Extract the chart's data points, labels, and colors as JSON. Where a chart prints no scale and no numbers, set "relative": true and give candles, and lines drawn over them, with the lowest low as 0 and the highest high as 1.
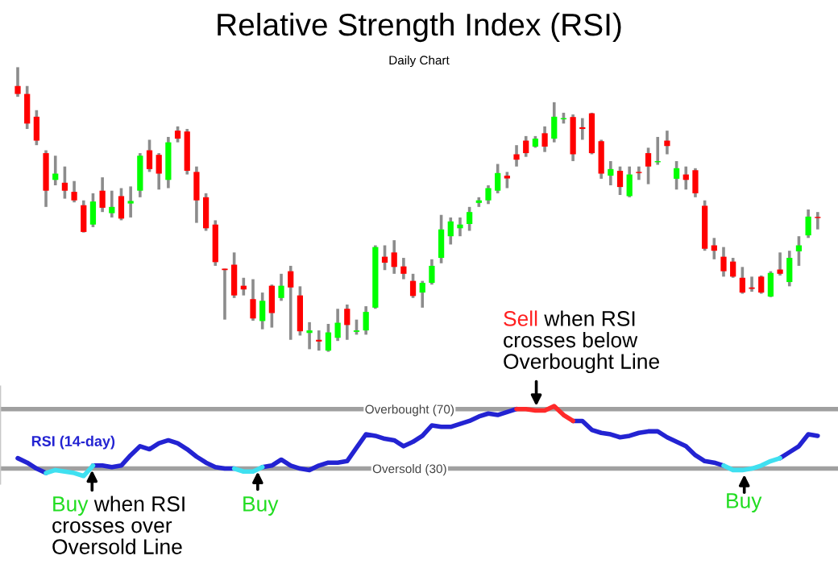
{
  "chart_data": [
    {
      "type": "candlestick",
      "title": "Relative Strength Index (RSI)",
      "subtitle": "Daily Chart",
      "relative": true,
      "tick_labels": false,
      "categories": [
        null,
        null,
        null,
        null,
        null,
        null,
        null,
        null,
        null,
        null,
        null,
        null,
        null,
        null,
        null,
        null,
        null,
        null,
        null,
        null,
        null,
        null,
        null,
        null,
        null,
        null,
        null,
        null,
        null,
        null,
        null,
        null,
        null,
        null,
        null,
        null,
        null,
        null,
        null,
        null,
        null,
        null,
        null,
        null,
        null,
        null,
        null,
        null,
        null,
        null,
        null,
        null,
        null,
        null,
        null,
        null,
        null,
        null,
        null,
        null,
        null,
        null,
        null,
        null,
        null,
        null,
        null,
        null,
        null,
        null,
        null,
        null,
        null,
        null,
        null,
        null,
        null,
        null,
        null,
        null,
        null,
        null,
        null,
        null,
        null,
        null
      ],
      "ohlc": [
        [
          0.934,
          1,
          0.896,
          0.906
        ],
        [
          0.906,
          0.934,
          0.783,
          0.802
        ],
        [
          0.826,
          0.849,
          0.726,
          0.742
        ],
        [
          0.698,
          0.708,
          0.509,
          0.566
        ],
        [
          0.604,
          0.689,
          0.585,
          0.626
        ],
        [
          0.594,
          0.651,
          0.538,
          0.566
        ],
        [
          0.562,
          0.6,
          0.525,
          0.532
        ],
        [
          0.515,
          0.532,
          0.419,
          0.421
        ],
        [
          0.447,
          0.557,
          0.438,
          0.528
        ],
        [
          0.566,
          0.613,
          0.491,
          0.506
        ],
        [
          0.487,
          0.566,
          0.472,
          0.509
        ],
        [
          0.547,
          0.575,
          0.462,
          0.468
        ],
        [
          0.521,
          0.581,
          0.472,
          0.53
        ],
        [
          0.566,
          0.698,
          0.543,
          0.689
        ],
        [
          0.708,
          0.745,
          0.632,
          0.642
        ],
        [
          0.692,
          0.698,
          0.57,
          0.626
        ],
        [
          0.604,
          0.755,
          0.575,
          0.736
        ],
        [
          0.777,
          0.792,
          0.736,
          0.749
        ],
        [
          0.774,
          0.783,
          0.623,
          0.636
        ],
        [
          0.632,
          0.651,
          0.453,
          0.532
        ],
        [
          0.543,
          0.557,
          0.425,
          0.434
        ],
        [
          0.447,
          0.462,
          0.302,
          0.315
        ],
        [
          0.292,
          0.292,
          0.113,
          0.287
        ],
        [
          0.306,
          0.349,
          0.189,
          0.198
        ],
        [
          0.232,
          0.26,
          0.198,
          0.219
        ],
        [
          0.185,
          0.255,
          0.109,
          0.117
        ],
        [
          0.108,
          0.208,
          0.079,
          0.179
        ],
        [
          0.232,
          0.236,
          0.085,
          0.136
        ],
        [
          0.189,
          0.274,
          0.179,
          0.232
        ],
        [
          0.283,
          0.302,
          0.042,
          0.226
        ],
        [
          0.198,
          0.23,
          0.057,
          0.072
        ],
        [
          0.066,
          0.104,
          0.009,
          0.075
        ],
        [
          0.042,
          0.075,
          0.004,
          0.036
        ],
        [
          0.004,
          0.098,
          0,
          0.068
        ],
        [
          0.049,
          0.151,
          0.038,
          0.102
        ],
        [
          0.151,
          0.166,
          0.042,
          0.094
        ],
        [
          0.07,
          0.113,
          0.06,
          0.075
        ],
        [
          0.075,
          0.16,
          0.06,
          0.14
        ],
        [
          0.155,
          0.374,
          0.151,
          0.368
        ],
        [
          0.334,
          0.374,
          0.287,
          0.313
        ],
        [
          0.349,
          0.392,
          0.274,
          0.298
        ],
        [
          0.3,
          0.33,
          0.255,
          0.274
        ],
        [
          0.249,
          0.274,
          0.189,
          0.196
        ],
        [
          0.208,
          0.249,
          0.155,
          0.242
        ],
        [
          0.242,
          0.325,
          0.236,
          0.302
        ],
        [
          0.33,
          0.481,
          0.311,
          0.43
        ],
        [
          0.406,
          0.472,
          0.377,
          0.458
        ],
        [
          0.434,
          0.472,
          0.406,
          0.447
        ],
        [
          0.449,
          0.509,
          0.425,
          0.491
        ],
        [
          0.523,
          0.543,
          0.509,
          0.532
        ],
        [
          0.532,
          0.585,
          0.519,
          0.575
        ],
        [
          0.566,
          0.66,
          0.557,
          0.628
        ],
        [
          0.619,
          0.632,
          0.575,
          0.609
        ],
        [
          0.694,
          0.726,
          0.651,
          0.675
        ],
        [
          0.742,
          0.758,
          0.685,
          0.698
        ],
        [
          0.721,
          0.758,
          0.717,
          0.749
        ],
        [
          0.768,
          0.792,
          0.702,
          0.721
        ],
        [
          0.749,
          0.877,
          0.736,
          0.826
        ],
        [
          0.817,
          0.84,
          0.802,
          0.821
        ],
        [
          0.825,
          0.834,
          0.67,
          0.694
        ],
        [
          0.789,
          0.821,
          0.745,
          0.783
        ],
        [
          0.838,
          0.84,
          0.694,
          0.698
        ],
        [
          0.74,
          0.745,
          0.608,
          0.626
        ],
        [
          0.619,
          0.67,
          0.585,
          0.642
        ],
        [
          0.636,
          0.651,
          0.551,
          0.579
        ],
        [
          0.547,
          0.651,
          0.543,
          0.623
        ],
        [
          0.632,
          0.651,
          0.604,
          0.628
        ],
        [
          0.698,
          0.717,
          0.589,
          0.651
        ],
        [
          0.666,
          0.755,
          0.657,
          0.67
        ],
        [
          0.742,
          0.777,
          0.694,
          0.723
        ],
        [
          0.608,
          0.67,
          0.57,
          0.645
        ],
        [
          0.623,
          0.651,
          0.57,
          0.604
        ],
        [
          0.638,
          0.645,
          0.543,
          0.557
        ],
        [
          0.513,
          0.532,
          0.355,
          0.362
        ],
        [
          0.374,
          0.4,
          0.325,
          0.355
        ],
        [
          0.334,
          0.368,
          0.264,
          0.283
        ],
        [
          0.317,
          0.33,
          0.26,
          0.264
        ],
        [
          0.26,
          0.298,
          0.204,
          0.208
        ],
        [
          0.226,
          0.264,
          0.211,
          0.221
        ],
        [
          0.264,
          0.268,
          0.204,
          0.208
        ],
        [
          0.194,
          0.283,
          0.192,
          0.277
        ],
        [
          0.289,
          0.349,
          0.268,
          0.274
        ],
        [
          0.245,
          0.355,
          0.23,
          0.33
        ],
        [
          0.353,
          0.406,
          0.302,
          0.374
        ],
        [
          0.409,
          0.5,
          0.4,
          0.475
        ],
        [
          0.474,
          0.491,
          0.43,
          0.47
        ]
      ],
      "colors": [
        "#ff0000",
        "#ff0000",
        "#ff0000",
        "#ff0000",
        "#00ff00",
        "#ff0000",
        "#ff0000",
        "#ff0000",
        "#00ff00",
        "#ff0000",
        "#00ff00",
        "#ff0000",
        "#00ff00",
        "#00ff00",
        "#ff0000",
        "#ff0000",
        "#00ff00",
        "#ff0000",
        "#ff0000",
        "#ff0000",
        "#ff0000",
        "#ff0000",
        "#ff0000",
        "#ff0000",
        "#ff0000",
        "#ff0000",
        "#00ff00",
        "#ff0000",
        "#00ff00",
        "#ff0000",
        "#ff0000",
        "#00ff00",
        "#ff0000",
        "#00ff00",
        "#00ff00",
        "#ff0000",
        "#00ff00",
        "#00ff00",
        "#00ff00",
        "#ff0000",
        "#ff0000",
        "#ff0000",
        "#ff0000",
        "#00ff00",
        "#00ff00",
        "#00ff00",
        "#00ff00",
        "#00ff00",
        "#00ff00",
        "#00ff00",
        "#00ff00",
        "#00ff00",
        "#ff0000",
        "#ff0000",
        "#ff0000",
        "#00ff00",
        "#ff0000",
        "#00ff00",
        "#00ff00",
        "#ff0000",
        "#ff0000",
        "#ff0000",
        "#ff0000",
        "#00ff00",
        "#ff0000",
        "#00ff00",
        "#ff0000",
        "#ff0000",
        "#00ff00",
        "#ff0000",
        "#00ff00",
        "#ff0000",
        "#ff0000",
        "#ff0000",
        "#ff0000",
        "#ff0000",
        "#ff0000",
        "#ff0000",
        "#ff0000",
        "#ff0000",
        "#00ff00",
        "#ff0000",
        "#00ff00",
        "#00ff00",
        "#00ff00",
        "#ff0000"
      ]
    },
    {
      "type": "line",
      "tick_labels": "y",
      "grid": "y",
      "ylim": [
        20,
        85
      ],
      "yticks": [
        {
          "value": 30,
          "label": "Oversold (30)"
        },
        {
          "value": 70,
          "label": "Overbought (70)"
        }
      ],
      "categories": [
        null,
        null,
        null,
        null,
        null,
        null,
        null,
        null,
        null,
        null,
        null,
        null,
        null,
        null,
        null,
        null,
        null,
        null,
        null,
        null,
        null,
        null,
        null,
        null,
        null,
        null,
        null,
        null,
        null,
        null,
        null,
        null,
        null,
        null,
        null,
        null,
        null,
        null,
        null,
        null,
        null,
        null,
        null,
        null,
        null,
        null,
        null,
        null,
        null,
        null,
        null,
        null,
        null,
        null,
        null,
        null,
        null,
        null,
        null,
        null,
        null,
        null,
        null,
        null,
        null,
        null,
        null,
        null,
        null,
        null,
        null,
        null,
        null,
        null,
        null,
        null,
        null,
        null,
        null,
        null,
        null,
        null,
        null,
        null,
        null,
        null
      ],
      "series": [
        {
          "name": "RSI (14-day)",
          "color": "#2323d2",
          "values": [
            37,
            34,
            30,
            27,
            null,
            null,
            null,
            null,
            32,
            32,
            31,
            32,
            39,
            45,
            43,
            47,
            49,
            47,
            43,
            38,
            34,
            31,
            30,
            30,
            null,
            null,
            31,
            32,
            36,
            32,
            30,
            29,
            32,
            34,
            34,
            35,
            44,
            53,
            52,
            50,
            49,
            45,
            48,
            52,
            59,
            58,
            58,
            60,
            62,
            65,
            67,
            66,
            68,
            70,
            null,
            null,
            null,
            null,
            null,
            62,
            62,
            56,
            54,
            53,
            51,
            52,
            54,
            55,
            55,
            51,
            48,
            45,
            39,
            35,
            34,
            32,
            null,
            null,
            null,
            null,
            null,
            37,
            41,
            45,
            53,
            52
          ]
        },
        {
          "color": "#3fe0f0",
          "values": [
            null,
            null,
            null,
            27,
            29,
            28,
            27,
            25,
            32,
            null,
            null,
            null,
            null,
            null,
            null,
            null,
            null,
            null,
            null,
            null,
            null,
            null,
            null,
            30,
            28,
            28,
            31,
            null,
            null,
            null,
            null,
            null,
            null,
            null,
            null,
            null,
            null,
            null,
            null,
            null,
            null,
            null,
            null,
            null,
            null,
            null,
            null,
            null,
            null,
            null,
            null,
            null,
            null,
            null,
            null,
            null,
            null,
            null,
            null,
            null,
            null,
            null,
            null,
            null,
            null,
            null,
            null,
            null,
            null,
            null,
            null,
            null,
            null,
            null,
            null,
            32,
            29,
            29,
            30,
            32,
            35,
            37,
            null,
            null,
            null,
            null
          ]
        },
        {
          "color": "#ff2a2a",
          "values": [
            null,
            null,
            null,
            null,
            null,
            null,
            null,
            null,
            null,
            null,
            null,
            null,
            null,
            null,
            null,
            null,
            null,
            null,
            null,
            null,
            null,
            null,
            null,
            null,
            null,
            null,
            null,
            null,
            null,
            null,
            null,
            null,
            null,
            null,
            null,
            null,
            null,
            null,
            null,
            null,
            null,
            null,
            null,
            null,
            null,
            null,
            null,
            null,
            null,
            null,
            null,
            null,
            null,
            70,
            70,
            69,
            69,
            72,
            66,
            62,
            null,
            null,
            null,
            null,
            null,
            null,
            null,
            null,
            null,
            null,
            null,
            null,
            null,
            null,
            null,
            null,
            null,
            null,
            null,
            null,
            null,
            null,
            null,
            null,
            null,
            null
          ]
        }
      ],
      "annotations": [
        "Sell when RSI\ncrosses below\nOverbought Line",
        "Buy when RSI\ncrosses over\nOversold Line",
        "Buy",
        "Buy"
      ]
    }
  ]
}
